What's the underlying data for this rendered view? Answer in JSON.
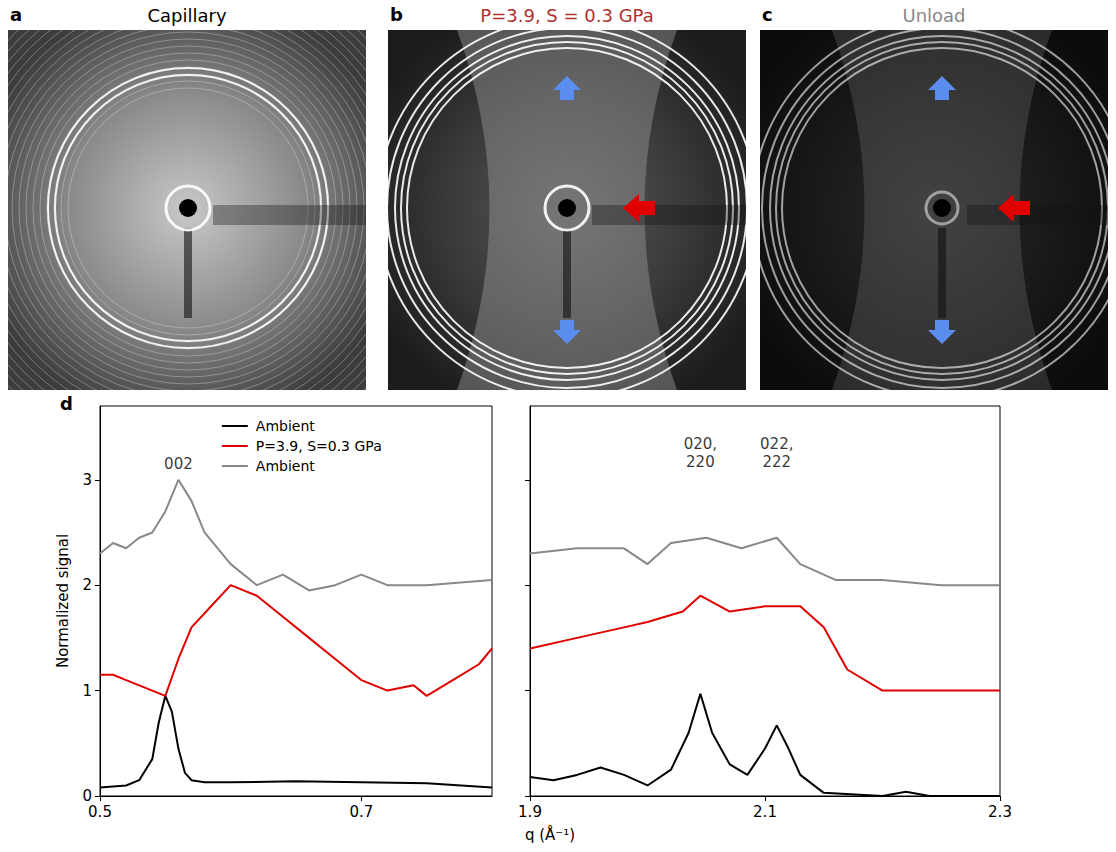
{
  "images": [
    {
      "letter": "a",
      "title": "Capillary",
      "color": "#000000"
    },
    {
      "letter": "b",
      "title": "P=3.9, S = 0.3 GPa",
      "color": "#b03030"
    },
    {
      "letter": "c",
      "title": "Unload",
      "color": "#888888"
    }
  ],
  "panel_letter": "d",
  "y_label": "Normalized signal",
  "x_label": "q (Å⁻¹)",
  "chart_data": [
    {
      "type": "line",
      "xlim": [
        0.5,
        0.8
      ],
      "xticks": [
        0.5,
        0.7
      ],
      "ylim": [
        0,
        3.7
      ],
      "yticks": [
        0,
        1,
        2,
        3
      ],
      "legend": "upper center",
      "annotations": [
        {
          "text": "002",
          "x": 0.56,
          "y": 3.15
        }
      ],
      "series": [
        {
          "name": "Ambient",
          "color": "#000000",
          "x": [
            0.5,
            0.52,
            0.53,
            0.54,
            0.545,
            0.55,
            0.555,
            0.56,
            0.565,
            0.57,
            0.58,
            0.6,
            0.65,
            0.7,
            0.75,
            0.8
          ],
          "values": [
            0.08,
            0.1,
            0.15,
            0.35,
            0.7,
            0.95,
            0.8,
            0.45,
            0.22,
            0.15,
            0.13,
            0.13,
            0.14,
            0.13,
            0.12,
            0.08
          ]
        },
        {
          "name": "P=3.9, S=0.3 GPa",
          "color": "#e00000",
          "x": [
            0.5,
            0.51,
            0.52,
            0.53,
            0.54,
            0.55,
            0.56,
            0.57,
            0.585,
            0.6,
            0.62,
            0.64,
            0.66,
            0.68,
            0.7,
            0.72,
            0.74,
            0.75,
            0.77,
            0.79,
            0.8
          ],
          "values": [
            1.15,
            1.15,
            1.1,
            1.05,
            1.0,
            0.95,
            1.3,
            1.6,
            1.8,
            2.0,
            1.9,
            1.7,
            1.5,
            1.3,
            1.1,
            1.0,
            1.05,
            0.95,
            1.1,
            1.25,
            1.4
          ]
        },
        {
          "name": "Ambient",
          "color": "#888888",
          "x": [
            0.5,
            0.51,
            0.52,
            0.53,
            0.54,
            0.55,
            0.56,
            0.57,
            0.58,
            0.6,
            0.62,
            0.64,
            0.66,
            0.68,
            0.7,
            0.72,
            0.75,
            0.8
          ],
          "values": [
            2.3,
            2.4,
            2.35,
            2.45,
            2.5,
            2.7,
            3.0,
            2.8,
            2.5,
            2.2,
            2.0,
            2.1,
            1.95,
            2.0,
            2.1,
            2.0,
            2.0,
            2.05
          ]
        }
      ]
    },
    {
      "type": "line",
      "xlim": [
        1.9,
        2.3
      ],
      "xticks": [
        1.9,
        2.1,
        2.3
      ],
      "ylim": [
        0,
        3.7
      ],
      "yticks": [
        0,
        1,
        2,
        3
      ],
      "tick_labels": "x",
      "annotations": [
        {
          "text": "020, 220",
          "x": 2.045,
          "y": 3.25
        },
        {
          "text": "022, 222",
          "x": 2.11,
          "y": 3.25
        }
      ],
      "series": [
        {
          "name": "Ambient",
          "color": "#000000",
          "x": [
            1.9,
            1.92,
            1.94,
            1.96,
            1.98,
            2.0,
            2.02,
            2.035,
            2.045,
            2.055,
            2.07,
            2.085,
            2.1,
            2.11,
            2.12,
            2.13,
            2.15,
            2.2,
            2.22,
            2.24,
            2.3
          ],
          "values": [
            0.18,
            0.15,
            0.2,
            0.27,
            0.2,
            0.1,
            0.25,
            0.6,
            0.97,
            0.6,
            0.3,
            0.2,
            0.45,
            0.67,
            0.45,
            0.2,
            0.03,
            0.0,
            0.04,
            0.0,
            0.0
          ]
        },
        {
          "name": "P=3.9, S=0.3 GPa",
          "color": "#e00000",
          "x": [
            1.9,
            1.94,
            1.98,
            2.0,
            2.03,
            2.045,
            2.07,
            2.1,
            2.13,
            2.15,
            2.17,
            2.2,
            2.25,
            2.3
          ],
          "values": [
            1.4,
            1.5,
            1.6,
            1.65,
            1.75,
            1.9,
            1.75,
            1.8,
            1.8,
            1.6,
            1.2,
            1.0,
            1.0,
            1.0
          ]
        },
        {
          "name": "Ambient",
          "color": "#888888",
          "x": [
            1.9,
            1.94,
            1.98,
            2.0,
            2.02,
            2.05,
            2.08,
            2.11,
            2.13,
            2.16,
            2.2,
            2.25,
            2.3
          ],
          "values": [
            2.3,
            2.35,
            2.35,
            2.2,
            2.4,
            2.45,
            2.35,
            2.45,
            2.2,
            2.05,
            2.05,
            2.0,
            2.0
          ]
        }
      ]
    }
  ]
}
